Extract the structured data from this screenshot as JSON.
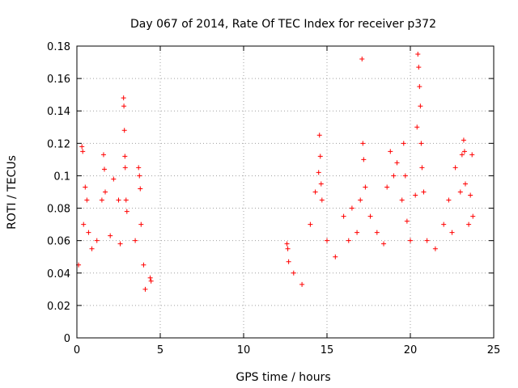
{
  "chart_data": {
    "type": "scatter",
    "title": "Day 067 of 2014, Rate Of TEC Index for receiver p372",
    "xlabel": "GPS time / hours",
    "ylabel": "ROTI / TECUs",
    "xlim": [
      0,
      25
    ],
    "ylim": [
      0,
      0.18
    ],
    "x_ticks": [
      0,
      5,
      10,
      15,
      20,
      25
    ],
    "y_ticks": [
      0,
      0.02,
      0.04,
      0.06,
      0.08,
      0.1,
      0.12,
      0.14,
      0.16,
      0.18
    ],
    "x_tick_labels": [
      "0",
      "5",
      "10",
      "15",
      "20",
      "25"
    ],
    "y_tick_labels": [
      "0",
      "0.02",
      "0.04",
      "0.06",
      "0.08",
      "0.1",
      "0.12",
      "0.14",
      "0.16",
      "0.18"
    ],
    "grid": true,
    "marker": "+",
    "color": "#ff0000",
    "series": [
      {
        "name": "ROTI",
        "points": [
          [
            0.1,
            0.045
          ],
          [
            0.3,
            0.118
          ],
          [
            0.35,
            0.115
          ],
          [
            0.4,
            0.07
          ],
          [
            0.5,
            0.093
          ],
          [
            0.6,
            0.085
          ],
          [
            0.7,
            0.065
          ],
          [
            0.9,
            0.055
          ],
          [
            1.2,
            0.06
          ],
          [
            1.5,
            0.085
          ],
          [
            1.6,
            0.113
          ],
          [
            1.65,
            0.104
          ],
          [
            1.7,
            0.09
          ],
          [
            2.0,
            0.063
          ],
          [
            2.2,
            0.098
          ],
          [
            2.5,
            0.085
          ],
          [
            2.6,
            0.058
          ],
          [
            2.8,
            0.148
          ],
          [
            2.82,
            0.143
          ],
          [
            2.85,
            0.128
          ],
          [
            2.88,
            0.112
          ],
          [
            2.9,
            0.105
          ],
          [
            2.95,
            0.085
          ],
          [
            3.0,
            0.078
          ],
          [
            3.5,
            0.06
          ],
          [
            3.7,
            0.105
          ],
          [
            3.75,
            0.1
          ],
          [
            3.8,
            0.092
          ],
          [
            3.85,
            0.07
          ],
          [
            4.0,
            0.045
          ],
          [
            4.1,
            0.03
          ],
          [
            4.4,
            0.037
          ],
          [
            4.45,
            0.035
          ],
          [
            12.6,
            0.058
          ],
          [
            12.65,
            0.055
          ],
          [
            12.7,
            0.047
          ],
          [
            13.0,
            0.04
          ],
          [
            13.5,
            0.033
          ],
          [
            14.0,
            0.07
          ],
          [
            14.3,
            0.09
          ],
          [
            14.5,
            0.102
          ],
          [
            14.55,
            0.125
          ],
          [
            14.6,
            0.112
          ],
          [
            14.65,
            0.095
          ],
          [
            14.7,
            0.085
          ],
          [
            15.0,
            0.06
          ],
          [
            15.5,
            0.05
          ],
          [
            16.0,
            0.075
          ],
          [
            16.3,
            0.06
          ],
          [
            16.5,
            0.08
          ],
          [
            16.8,
            0.065
          ],
          [
            17.0,
            0.085
          ],
          [
            17.1,
            0.172
          ],
          [
            17.15,
            0.12
          ],
          [
            17.2,
            0.11
          ],
          [
            17.3,
            0.093
          ],
          [
            17.6,
            0.075
          ],
          [
            18.0,
            0.065
          ],
          [
            18.4,
            0.058
          ],
          [
            18.6,
            0.093
          ],
          [
            18.8,
            0.115
          ],
          [
            19.0,
            0.1
          ],
          [
            19.2,
            0.108
          ],
          [
            19.5,
            0.085
          ],
          [
            19.6,
            0.12
          ],
          [
            19.7,
            0.1
          ],
          [
            19.8,
            0.072
          ],
          [
            20.0,
            0.06
          ],
          [
            20.3,
            0.088
          ],
          [
            20.4,
            0.13
          ],
          [
            20.45,
            0.175
          ],
          [
            20.5,
            0.167
          ],
          [
            20.55,
            0.155
          ],
          [
            20.6,
            0.143
          ],
          [
            20.65,
            0.12
          ],
          [
            20.7,
            0.105
          ],
          [
            20.8,
            0.09
          ],
          [
            21.0,
            0.06
          ],
          [
            21.5,
            0.055
          ],
          [
            22.0,
            0.07
          ],
          [
            22.3,
            0.085
          ],
          [
            22.5,
            0.065
          ],
          [
            22.7,
            0.105
          ],
          [
            23.0,
            0.09
          ],
          [
            23.1,
            0.113
          ],
          [
            23.2,
            0.122
          ],
          [
            23.25,
            0.115
          ],
          [
            23.3,
            0.095
          ],
          [
            23.5,
            0.07
          ],
          [
            23.6,
            0.088
          ],
          [
            23.7,
            0.113
          ],
          [
            23.75,
            0.075
          ]
        ]
      }
    ]
  }
}
